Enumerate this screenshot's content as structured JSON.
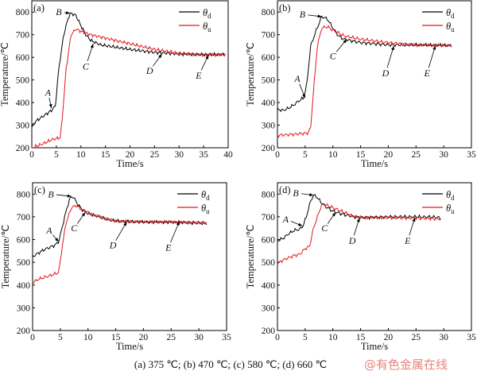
{
  "chart_data": [
    {
      "type": "line",
      "panel_label": "(a)",
      "xlabel": "Time/s",
      "ylabel": "Temperature/℃",
      "xlim": [
        0,
        40
      ],
      "ylim": [
        200,
        850
      ],
      "xticks": [
        "0",
        "5",
        "10",
        "15",
        "20",
        "25",
        "30",
        "35",
        "40"
      ],
      "xtick_values": [
        0,
        5,
        10,
        15,
        20,
        25,
        30,
        35,
        40
      ],
      "yticks": [
        "200",
        "300",
        "400",
        "500",
        "600",
        "700",
        "800"
      ],
      "ytick_values": [
        200,
        300,
        400,
        500,
        600,
        700,
        800
      ],
      "legend": {
        "placement": "top-right",
        "entries": [
          {
            "symbol": "θ",
            "sub": "d"
          },
          {
            "symbol": "θ",
            "sub": "u"
          }
        ]
      },
      "series": [
        {
          "name": "θd",
          "color": "#000000",
          "points": [
            [
              0,
              290
            ],
            [
              0.5,
              310
            ],
            [
              1,
              320
            ],
            [
              2,
              335
            ],
            [
              3,
              350
            ],
            [
              4,
              365
            ],
            [
              4.8,
              385
            ],
            [
              5.5,
              550
            ],
            [
              6.5,
              700
            ],
            [
              7.5,
              780
            ],
            [
              8,
              795
            ],
            [
              9,
              785
            ],
            [
              10,
              740
            ],
            [
              11,
              700
            ],
            [
              12,
              675
            ],
            [
              14,
              655
            ],
            [
              17,
              645
            ],
            [
              20,
              635
            ],
            [
              25,
              622
            ],
            [
              30,
              615
            ],
            [
              35,
              612
            ],
            [
              39.5,
              612
            ]
          ]
        },
        {
          "name": "θu",
          "color": "#e8141b",
          "points": [
            [
              0,
              200
            ],
            [
              2,
              215
            ],
            [
              4,
              235
            ],
            [
              5.8,
              245
            ],
            [
              6.2,
              330
            ],
            [
              7,
              550
            ],
            [
              8,
              700
            ],
            [
              9,
              725
            ],
            [
              10,
              715
            ],
            [
              12,
              700
            ],
            [
              15,
              685
            ],
            [
              20,
              660
            ],
            [
              25,
              635
            ],
            [
              30,
              618
            ],
            [
              35,
              612
            ],
            [
              39.5,
              612
            ]
          ]
        }
      ],
      "annotations": [
        {
          "text": "A",
          "text_at": [
            3.3,
            445
          ],
          "point": [
            4,
            375
          ]
        },
        {
          "text": "B",
          "text_at": [
            5.5,
            800
          ],
          "point": [
            7.8,
            795
          ]
        },
        {
          "text": "C",
          "text_at": [
            11,
            560
          ],
          "point": [
            12.5,
            660
          ]
        },
        {
          "text": "D",
          "text_at": [
            24,
            540
          ],
          "point": [
            26.5,
            615
          ]
        },
        {
          "text": "E",
          "text_at": [
            34,
            520
          ],
          "point": [
            36,
            610
          ]
        }
      ]
    },
    {
      "type": "line",
      "panel_label": "(b)",
      "xlabel": "Time/s",
      "ylabel": "Temperature/℃",
      "xlim": [
        0,
        35
      ],
      "ylim": [
        200,
        850
      ],
      "xticks": [
        "0",
        "5",
        "10",
        "15",
        "20",
        "25",
        "30",
        "35"
      ],
      "xtick_values": [
        0,
        5,
        10,
        15,
        20,
        25,
        30,
        35
      ],
      "yticks": [
        "200",
        "300",
        "400",
        "500",
        "600",
        "700",
        "800"
      ],
      "ytick_values": [
        200,
        300,
        400,
        500,
        600,
        700,
        800
      ],
      "legend": {
        "placement": "top-right",
        "entries": [
          {
            "symbol": "θ",
            "sub": "d"
          },
          {
            "symbol": "θ",
            "sub": "u"
          }
        ]
      },
      "series": [
        {
          "name": "θd",
          "color": "#000000",
          "points": [
            [
              0,
              370
            ],
            [
              1,
              365
            ],
            [
              2,
              375
            ],
            [
              3,
              390
            ],
            [
              4,
              410
            ],
            [
              4.7,
              420
            ],
            [
              5.3,
              480
            ],
            [
              6,
              650
            ],
            [
              7,
              720
            ],
            [
              8,
              780
            ],
            [
              9,
              770
            ],
            [
              10,
              730
            ],
            [
              11,
              695
            ],
            [
              12,
              680
            ],
            [
              15,
              665
            ],
            [
              20,
              655
            ],
            [
              25,
              655
            ],
            [
              31.5,
              652
            ]
          ]
        },
        {
          "name": "θu",
          "color": "#e8141b",
          "points": [
            [
              0,
              255
            ],
            [
              3,
              260
            ],
            [
              5.5,
              265
            ],
            [
              6,
              290
            ],
            [
              6.5,
              450
            ],
            [
              7.2,
              650
            ],
            [
              8,
              730
            ],
            [
              9,
              735
            ],
            [
              10,
              720
            ],
            [
              12,
              695
            ],
            [
              15,
              680
            ],
            [
              20,
              665
            ],
            [
              25,
              655
            ],
            [
              31.5,
              652
            ]
          ]
        }
      ],
      "annotations": [
        {
          "text": "A",
          "text_at": [
            3.6,
            505
          ],
          "point": [
            5,
            420
          ]
        },
        {
          "text": "B",
          "text_at": [
            4.5,
            790
          ],
          "point": [
            8,
            780
          ]
        },
        {
          "text": "C",
          "text_at": [
            10,
            605
          ],
          "point": [
            12.5,
            680
          ]
        },
        {
          "text": "D",
          "text_at": [
            19.5,
            530
          ],
          "point": [
            21,
            650
          ]
        },
        {
          "text": "E",
          "text_at": [
            27,
            530
          ],
          "point": [
            28.5,
            652
          ]
        }
      ]
    },
    {
      "type": "line",
      "panel_label": "(c)",
      "xlabel": "Time/s",
      "ylabel": "Temperature/℃",
      "xlim": [
        0,
        35
      ],
      "ylim": [
        200,
        850
      ],
      "xticks": [
        "0",
        "5",
        "10",
        "15",
        "20",
        "25",
        "30",
        "35"
      ],
      "xtick_values": [
        0,
        5,
        10,
        15,
        20,
        25,
        30,
        35
      ],
      "yticks": [
        "200",
        "300",
        "400",
        "500",
        "600",
        "700",
        "800"
      ],
      "ytick_values": [
        200,
        300,
        400,
        500,
        600,
        700,
        800
      ],
      "legend": {
        "placement": "top-right",
        "entries": [
          {
            "symbol": "θ",
            "sub": "d"
          },
          {
            "symbol": "θ",
            "sub": "u"
          }
        ]
      },
      "series": [
        {
          "name": "θd",
          "color": "#000000",
          "points": [
            [
              0,
              525
            ],
            [
              1,
              540
            ],
            [
              2,
              555
            ],
            [
              3,
              565
            ],
            [
              4,
              575
            ],
            [
              4.7,
              590
            ],
            [
              5.2,
              640
            ],
            [
              6,
              720
            ],
            [
              6.7,
              780
            ],
            [
              7.3,
              790
            ],
            [
              8,
              760
            ],
            [
              9,
              730
            ],
            [
              10,
              715
            ],
            [
              12,
              700
            ],
            [
              14,
              685
            ],
            [
              16,
              680
            ],
            [
              20,
              677
            ],
            [
              25,
              677
            ],
            [
              31.5,
              672
            ]
          ]
        },
        {
          "name": "θu",
          "color": "#e8141b",
          "points": [
            [
              0,
              410
            ],
            [
              1,
              425
            ],
            [
              3,
              440
            ],
            [
              4.7,
              455
            ],
            [
              5.3,
              560
            ],
            [
              6,
              670
            ],
            [
              7,
              740
            ],
            [
              7.8,
              750
            ],
            [
              9,
              730
            ],
            [
              11,
              710
            ],
            [
              13,
              695
            ],
            [
              15,
              682
            ],
            [
              20,
              677
            ],
            [
              25,
              677
            ],
            [
              31.5,
              675
            ]
          ]
        }
      ],
      "annotations": [
        {
          "text": "A",
          "text_at": [
            3,
            640
          ],
          "point": [
            4.7,
            590
          ]
        },
        {
          "text": "B",
          "text_at": [
            3.3,
            800
          ],
          "point": [
            7,
            790
          ]
        },
        {
          "text": "C",
          "text_at": [
            7.5,
            650
          ],
          "point": [
            9.5,
            720
          ]
        },
        {
          "text": "D",
          "text_at": [
            14.5,
            575
          ],
          "point": [
            17,
            678
          ]
        },
        {
          "text": "E",
          "text_at": [
            24.5,
            565
          ],
          "point": [
            26.5,
            680
          ]
        }
      ]
    },
    {
      "type": "line",
      "panel_label": "(d)",
      "xlabel": "Time/s",
      "ylabel": "Temperature/℃",
      "xlim": [
        0,
        35
      ],
      "ylim": [
        200,
        850
      ],
      "xticks": [
        "0",
        "5",
        "10",
        "15",
        "20",
        "25",
        "30",
        "35"
      ],
      "xtick_values": [
        0,
        5,
        10,
        15,
        20,
        25,
        30,
        35
      ],
      "yticks": [
        "200",
        "300",
        "400",
        "500",
        "600",
        "700",
        "800"
      ],
      "ytick_values": [
        200,
        300,
        400,
        500,
        600,
        700,
        800
      ],
      "legend": {
        "placement": "top-right",
        "entries": [
          {
            "symbol": "θ",
            "sub": "d"
          },
          {
            "symbol": "θ",
            "sub": "u"
          }
        ]
      },
      "series": [
        {
          "name": "θd",
          "color": "#000000",
          "points": [
            [
              0,
              595
            ],
            [
              1,
              605
            ],
            [
              2,
              625
            ],
            [
              3,
              640
            ],
            [
              4,
              645
            ],
            [
              4.6,
              660
            ],
            [
              5.2,
              700
            ],
            [
              6,
              770
            ],
            [
              6.5,
              795
            ],
            [
              7,
              790
            ],
            [
              8,
              760
            ],
            [
              9,
              740
            ],
            [
              10,
              725
            ],
            [
              12,
              710
            ],
            [
              14,
              700
            ],
            [
              15,
              697
            ],
            [
              20,
              700
            ],
            [
              25,
              700
            ],
            [
              29,
              698
            ],
            [
              29.5,
              690
            ]
          ]
        },
        {
          "name": "θu",
          "color": "#e8141b",
          "points": [
            [
              0,
              495
            ],
            [
              1,
              510
            ],
            [
              2,
              520
            ],
            [
              3,
              530
            ],
            [
              4,
              535
            ],
            [
              5,
              560
            ],
            [
              5.8,
              570
            ],
            [
              6.5,
              650
            ],
            [
              7.5,
              720
            ],
            [
              8,
              755
            ],
            [
              9,
              750
            ],
            [
              10,
              740
            ],
            [
              12,
              720
            ],
            [
              14,
              700
            ],
            [
              16,
              697
            ],
            [
              20,
              697
            ],
            [
              25,
              695
            ],
            [
              29.5,
              690
            ]
          ]
        }
      ],
      "annotations": [
        {
          "text": "A",
          "text_at": [
            1.5,
            690
          ],
          "point": [
            4.5,
            660
          ]
        },
        {
          "text": "B",
          "text_at": [
            3.3,
            805
          ],
          "point": [
            6.5,
            795
          ]
        },
        {
          "text": "C",
          "text_at": [
            8.5,
            650
          ],
          "point": [
            10.5,
            720
          ]
        },
        {
          "text": "D",
          "text_at": [
            13.5,
            595
          ],
          "point": [
            14.8,
            695
          ]
        },
        {
          "text": "E",
          "text_at": [
            23.5,
            595
          ],
          "point": [
            24.8,
            697
          ]
        }
      ]
    }
  ],
  "caption": "(a) 375 ℃; (b) 470 ℃; (c) 580 ℃; (d) 660 ℃",
  "watermark": "@有色金属在线"
}
